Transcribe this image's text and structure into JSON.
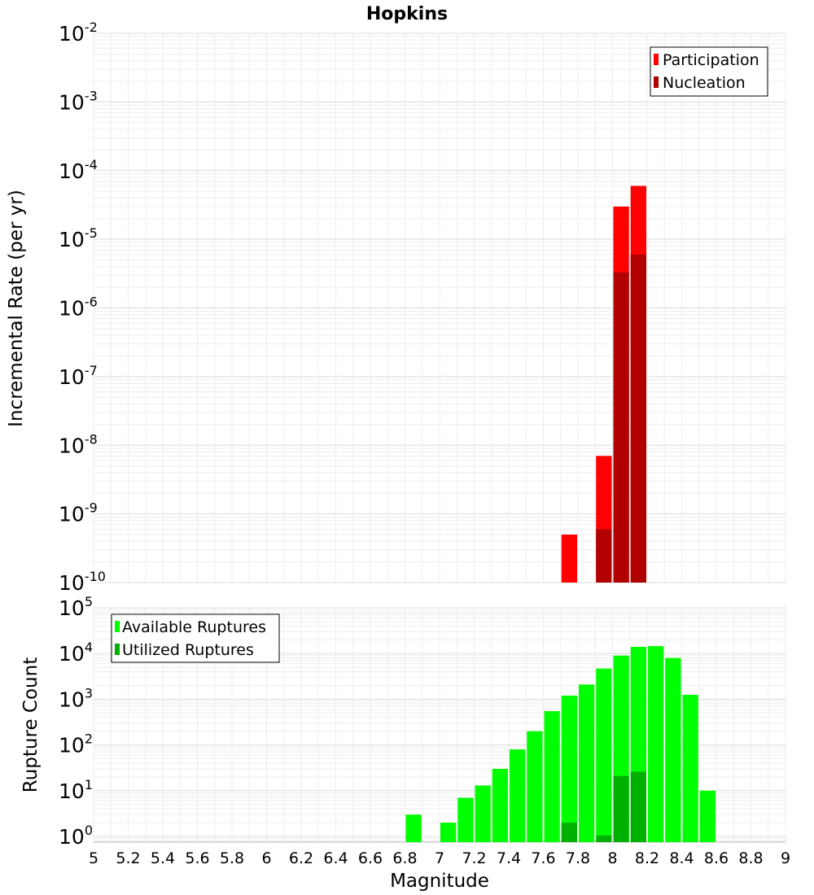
{
  "chart_data": [
    {
      "type": "bar",
      "title": "Hopkins",
      "xlabel": "Magnitude",
      "ylabel": "Incremental Rate (per yr)",
      "yscale": "log",
      "xlim": [
        5,
        9
      ],
      "ylim": [
        1e-10,
        0.01
      ],
      "ytick_labels": [
        {
          "base": "10",
          "exp": "-2"
        },
        {
          "base": "10",
          "exp": "-3"
        },
        {
          "base": "10",
          "exp": "-4"
        },
        {
          "base": "10",
          "exp": "-5"
        },
        {
          "base": "10",
          "exp": "-6"
        },
        {
          "base": "10",
          "exp": "-7"
        },
        {
          "base": "10",
          "exp": "-8"
        },
        {
          "base": "10",
          "exp": "-9"
        },
        {
          "base": "10",
          "exp": "-10"
        }
      ],
      "grid": true,
      "legend_position": "top-right",
      "bin_width": 0.1,
      "series": [
        {
          "name": "Participation",
          "color": "#ff0000",
          "x": [
            7.75,
            7.95,
            8.05,
            8.15
          ],
          "values": [
            5e-10,
            7e-09,
            3e-05,
            6e-05
          ]
        },
        {
          "name": "Nucleation",
          "color": "#b00000",
          "x": [
            7.95,
            8.05,
            8.15
          ],
          "values": [
            6e-10,
            3.3e-06,
            6e-06
          ]
        }
      ]
    },
    {
      "type": "bar",
      "title": "",
      "xlabel": "Magnitude",
      "ylabel": "Rupture Count",
      "yscale": "log",
      "xlim": [
        5,
        9
      ],
      "ylim": [
        0.75,
        100000.0
      ],
      "x_tick_labels": [
        "5",
        "5.2",
        "5.4",
        "5.6",
        "5.8",
        "6",
        "6.2",
        "6.4",
        "6.6",
        "6.8",
        "7",
        "7.2",
        "7.4",
        "7.6",
        "7.8",
        "8",
        "8.2",
        "8.4",
        "8.6",
        "8.8",
        "9"
      ],
      "ytick_labels": [
        {
          "base": "10",
          "exp": "5"
        },
        {
          "base": "10",
          "exp": "4"
        },
        {
          "base": "10",
          "exp": "3"
        },
        {
          "base": "10",
          "exp": "2"
        },
        {
          "base": "10",
          "exp": "1"
        },
        {
          "base": "10",
          "exp": "0"
        }
      ],
      "grid": true,
      "legend_position": "top-left",
      "bin_width": 0.1,
      "series": [
        {
          "name": "Available Ruptures",
          "color": "#00ff00",
          "x": [
            6.85,
            7.05,
            7.15,
            7.25,
            7.35,
            7.45,
            7.55,
            7.65,
            7.75,
            7.85,
            7.95,
            8.05,
            8.15,
            8.25,
            8.35,
            8.45,
            8.55
          ],
          "values": [
            3,
            2,
            7,
            13,
            30,
            80,
            200,
            550,
            1200,
            2100,
            4700,
            9000,
            14000,
            14500,
            8000,
            1250,
            10
          ]
        },
        {
          "name": "Utilized Ruptures",
          "color": "#00b000",
          "x": [
            7.75,
            7.95,
            8.05,
            8.15
          ],
          "values": [
            2,
            1.05,
            21,
            26
          ]
        }
      ]
    }
  ]
}
